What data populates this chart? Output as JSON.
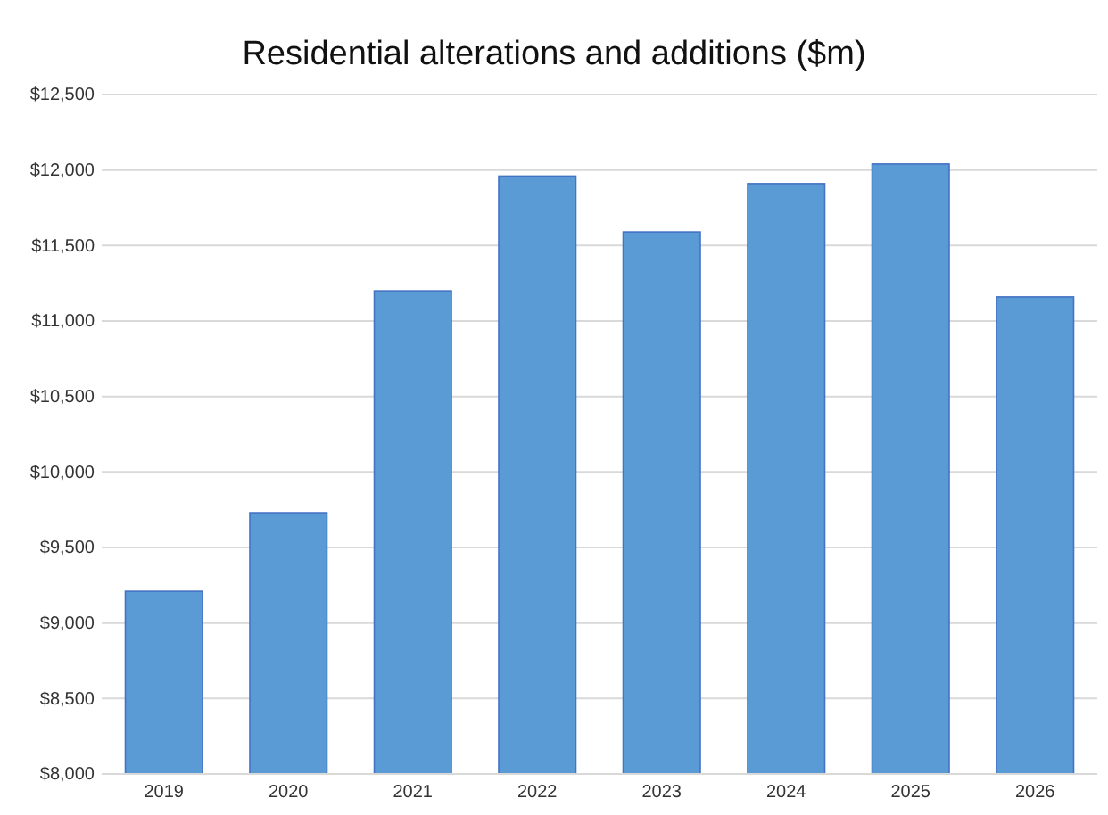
{
  "chart_data": {
    "type": "bar",
    "title": "Residential alterations and additions ($m)",
    "categories": [
      "2019",
      "2020",
      "2021",
      "2022",
      "2023",
      "2024",
      "2025",
      "2026"
    ],
    "values": [
      9210,
      9730,
      11200,
      11960,
      11590,
      11910,
      12040,
      11160
    ],
    "color": "#5b9bd5",
    "ylim": [
      8000,
      12500
    ],
    "yticks": [
      {
        "value": 8000,
        "label": "$8,000"
      },
      {
        "value": 8500,
        "label": "$8,500"
      },
      {
        "value": 9000,
        "label": "$9,000"
      },
      {
        "value": 9500,
        "label": "$9,500"
      },
      {
        "value": 10000,
        "label": "$10,000"
      },
      {
        "value": 10500,
        "label": "$10,500"
      },
      {
        "value": 11000,
        "label": "$11,000"
      },
      {
        "value": 11500,
        "label": "$11,500"
      },
      {
        "value": 12000,
        "label": "$12,000"
      },
      {
        "value": 12500,
        "label": "$12,500"
      }
    ],
    "grid": "y"
  }
}
